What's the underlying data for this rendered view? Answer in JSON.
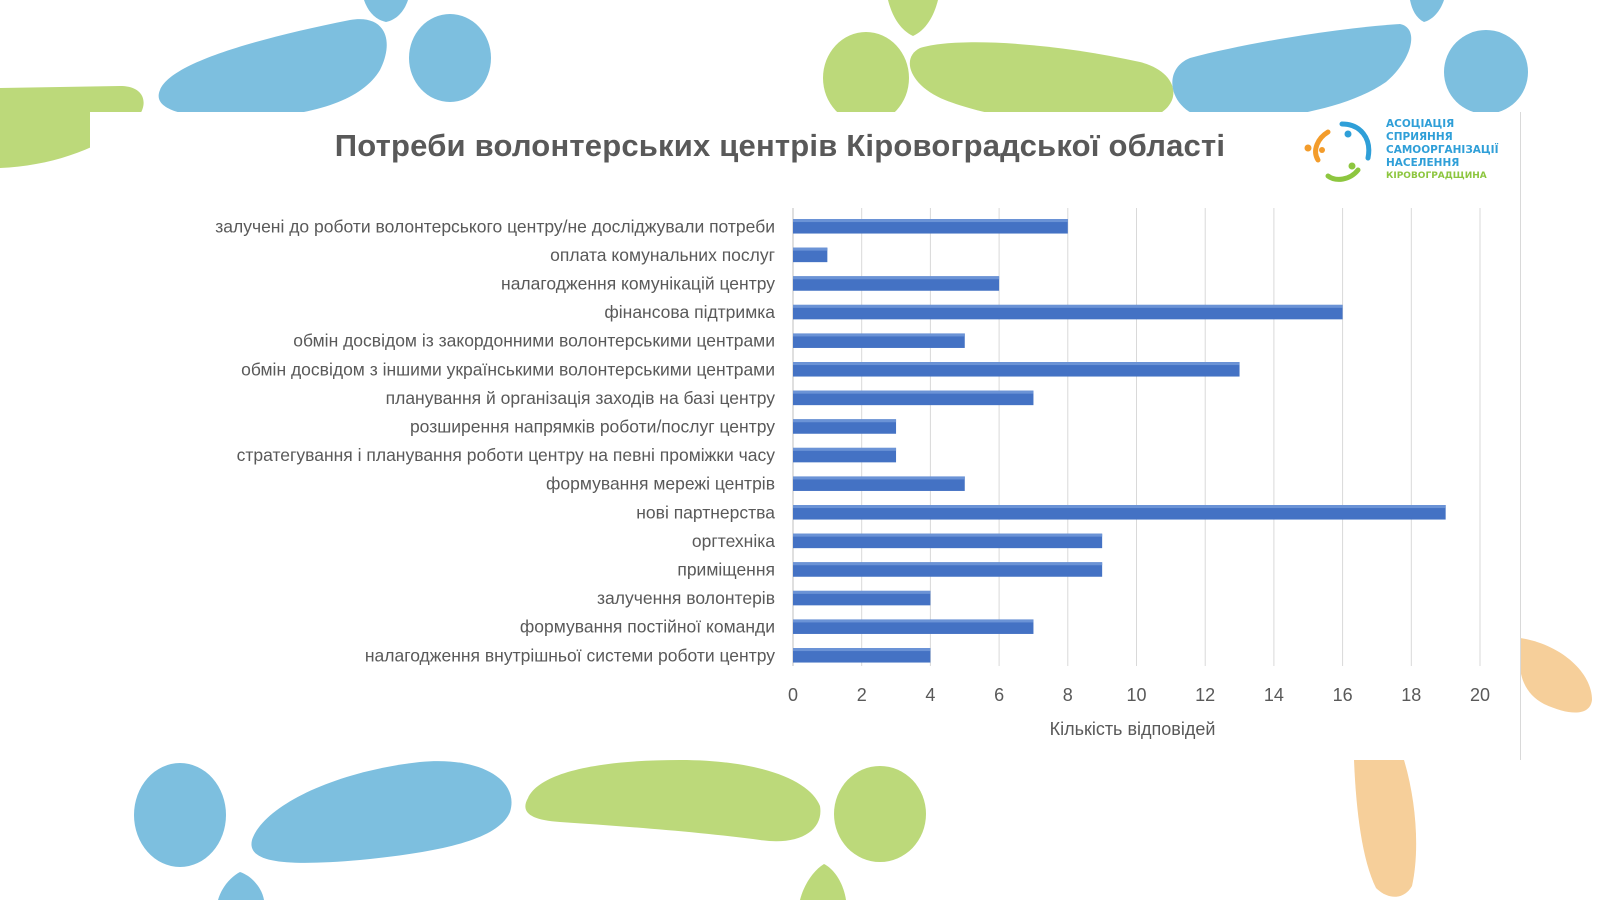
{
  "page": {
    "background": "#ffffff",
    "decoration_colors": {
      "blue": "#7dbfdf",
      "green": "#bcd97a",
      "orange": "#f6cf9a"
    }
  },
  "logo": {
    "icon": "association-logo-icon",
    "lines": [
      "АСОЦІАЦІЯ",
      "СПРИЯННЯ",
      "САМООРГАНІЗАЦІЇ",
      "НАСЕЛЕННЯ",
      "КІРОВОГРАДЩИНА"
    ],
    "colors": {
      "blue": "#2f9fd8",
      "orange": "#f39c2b",
      "green": "#8dc63f"
    }
  },
  "chart_data": {
    "type": "bar",
    "orientation": "horizontal",
    "title": "Потреби волонтерських центрів Кіровоградської області",
    "xlabel": "Кількість відповідей",
    "ylabel": "",
    "xlim": [
      0,
      20
    ],
    "xticks": [
      "0",
      "2",
      "4",
      "6",
      "8",
      "10",
      "12",
      "14",
      "16",
      "18",
      "20"
    ],
    "grid": true,
    "legend": false,
    "bar_color": "#4472c4",
    "categories": [
      "залучені до роботи волонтерського центру/не досліджували потреби",
      "оплата комунальних послуг",
      "налагодження комунікацій центру",
      "фінансова підтримка",
      "обмін досвідом із закордонними волонтерськими центрами",
      "обмін досвідом з іншими українськими волонтерськими центрами",
      "планування й організація заходів на базі центру",
      "розширення напрямків роботи/послуг центру",
      "стратегування і планування роботи центру на певні проміжки часу",
      "формування мережі центрів",
      "нові партнерства",
      "оргтехніка",
      "приміщення",
      "залучення волонтерів",
      "формування постійної команди",
      "налагодження внутрішньої системи роботи центру"
    ],
    "values": [
      8,
      1,
      6,
      16,
      5,
      13,
      7,
      3,
      3,
      5,
      19,
      9,
      9,
      4,
      7,
      4
    ]
  }
}
